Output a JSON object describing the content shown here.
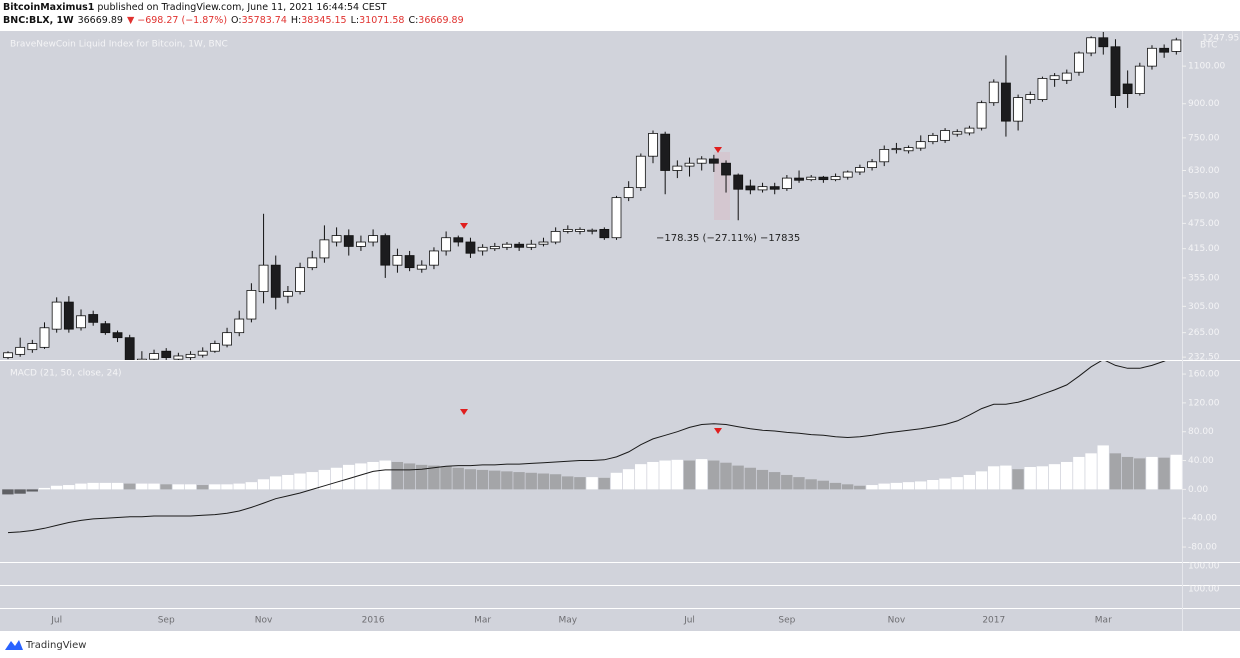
{
  "header": {
    "publisher": "BitcoinMaximus1",
    "published_line": "published on TradingView.com, June 11, 2021 16:44:54 CEST",
    "symbol": "BNC:BLX, 1W",
    "price": "36669.89",
    "change": "▼ −698.27 (−1.87%)",
    "ohlc": [
      {
        "label": "O:",
        "value": "35783.74"
      },
      {
        "label": "H:",
        "value": "38345.15"
      },
      {
        "label": "L:",
        "value": "31071.58"
      },
      {
        "label": "C:",
        "value": "36669.89"
      }
    ]
  },
  "chart_data": [
    {
      "type": "candlestick",
      "title": "BraveNewCoin Liquid Index for Bitcoin, 1W, BNC",
      "last_price_label": "1247.95",
      "unit": "BTC",
      "measure_label": "−178.35 (−27.11%) −17835",
      "categories": [
        null,
        null,
        null,
        null,
        "Jul",
        null,
        null,
        null,
        null,
        null,
        null,
        null,
        null,
        "Sep",
        null,
        null,
        null,
        null,
        null,
        null,
        null,
        "Nov",
        null,
        null,
        null,
        null,
        null,
        null,
        null,
        null,
        "2016",
        null,
        null,
        null,
        null,
        null,
        null,
        null,
        null,
        "Mar",
        null,
        null,
        null,
        null,
        null,
        null,
        "May",
        null,
        null,
        null,
        null,
        null,
        null,
        null,
        null,
        null,
        "Jul",
        null,
        null,
        null,
        null,
        null,
        null,
        null,
        "Sep",
        null,
        null,
        null,
        null,
        null,
        null,
        null,
        null,
        "Nov",
        null,
        null,
        null,
        null,
        null,
        null,
        null,
        "2017",
        null,
        null,
        null,
        null,
        null,
        null,
        null,
        null,
        "Mar",
        null,
        null,
        null,
        null,
        null,
        null
      ],
      "open": [
        232,
        236,
        242,
        245,
        270,
        312,
        272,
        292,
        278,
        265,
        258,
        225,
        230,
        240,
        230,
        232,
        235,
        240,
        248,
        265,
        285,
        330,
        380,
        322,
        330,
        375,
        395,
        430,
        445,
        420,
        430,
        445,
        380,
        400,
        372,
        380,
        410,
        440,
        430,
        410,
        415,
        418,
        425,
        418,
        425,
        430,
        455,
        455,
        456,
        460,
        440,
        545,
        575,
        680,
        765,
        630,
        645,
        655,
        670,
        655,
        615,
        580,
        568,
        578,
        572,
        605,
        600,
        608,
        600,
        608,
        625,
        640,
        660,
        705,
        700,
        710,
        735,
        740,
        765,
        770,
        790,
        905,
        1005,
        820,
        920,
        920,
        1025,
        1020,
        1065,
        1180,
        1280,
        1220,
        1000,
        950,
        1100,
        1210,
        1190
      ],
      "high": [
        240,
        258,
        255,
        280,
        320,
        322,
        300,
        298,
        282,
        268,
        262,
        240,
        242,
        244,
        238,
        240,
        245,
        254,
        272,
        298,
        345,
        500,
        400,
        340,
        385,
        410,
        470,
        465,
        460,
        445,
        460,
        450,
        415,
        410,
        390,
        418,
        455,
        445,
        440,
        425,
        428,
        430,
        430,
        435,
        440,
        465,
        470,
        465,
        462,
        465,
        550,
        595,
        690,
        780,
        775,
        665,
        675,
        680,
        685,
        665,
        620,
        600,
        590,
        590,
        615,
        630,
        615,
        612,
        620,
        630,
        650,
        670,
        720,
        730,
        720,
        760,
        770,
        790,
        785,
        800,
        915,
        1025,
        1165,
        945,
        960,
        1040,
        1060,
        1080,
        1190,
        1290,
        1320,
        1270,
        1075,
        1120,
        1230,
        1235,
        1280
      ],
      "low": [
        230,
        233,
        238,
        243,
        265,
        265,
        268,
        275,
        262,
        252,
        210,
        215,
        225,
        226,
        226,
        228,
        232,
        238,
        245,
        260,
        280,
        310,
        300,
        310,
        325,
        370,
        385,
        420,
        400,
        410,
        420,
        355,
        365,
        368,
        365,
        372,
        400,
        420,
        395,
        400,
        410,
        412,
        410,
        412,
        420,
        425,
        450,
        448,
        448,
        435,
        435,
        535,
        565,
        655,
        555,
        605,
        610,
        630,
        625,
        560,
        483,
        555,
        560,
        555,
        565,
        590,
        595,
        590,
        595,
        600,
        615,
        630,
        645,
        690,
        690,
        700,
        725,
        730,
        755,
        760,
        780,
        890,
        755,
        780,
        900,
        910,
        985,
        1000,
        1045,
        1160,
        1170,
        880,
        880,
        940,
        1080,
        1150,
        1170
      ],
      "close": [
        238,
        245,
        250,
        272,
        312,
        270,
        290,
        280,
        265,
        258,
        225,
        230,
        237,
        232,
        234,
        236,
        240,
        250,
        265,
        285,
        332,
        380,
        320,
        330,
        375,
        395,
        435,
        445,
        420,
        430,
        445,
        380,
        400,
        375,
        380,
        410,
        440,
        430,
        405,
        418,
        420,
        425,
        418,
        425,
        430,
        455,
        460,
        460,
        458,
        440,
        545,
        575,
        680,
        768,
        630,
        645,
        655,
        670,
        655,
        615,
        570,
        568,
        578,
        570,
        605,
        598,
        608,
        600,
        610,
        625,
        640,
        660,
        705,
        708,
        712,
        735,
        760,
        780,
        775,
        790,
        905,
        1010,
        820,
        930,
        945,
        1030,
        1045,
        1060,
        1180,
        1280,
        1220,
        940,
        950,
        1100,
        1210,
        1185,
        1265
      ],
      "up_color": "#ffffff",
      "down_color": "#1c1c1e",
      "border_color": "#111111",
      "log_scale": true,
      "ylim": [
        229,
        1320
      ],
      "yticks": [
        {
          "value": 232.5,
          "label": "232.50"
        },
        {
          "value": 265,
          "label": "265.00"
        },
        {
          "value": 305,
          "label": "305.00"
        },
        {
          "value": 355,
          "label": "355.00"
        },
        {
          "value": 415,
          "label": "415.00"
        },
        {
          "value": 475,
          "label": "475.00"
        },
        {
          "value": 550,
          "label": "550.00"
        },
        {
          "value": 630,
          "label": "630.00"
        },
        {
          "value": 750,
          "label": "750.00"
        },
        {
          "value": 900,
          "label": "900.00"
        },
        {
          "value": 1100,
          "label": "1100.00"
        }
      ],
      "grid": false
    },
    {
      "type": "macd",
      "title": "MACD (21, 50, close, 24)",
      "histogram": [
        -7,
        -6,
        -3,
        2,
        5,
        6,
        8,
        9,
        9,
        9,
        8,
        8,
        8,
        7,
        7,
        7,
        6,
        7,
        7,
        8,
        10,
        14,
        18,
        20,
        22,
        24,
        27,
        30,
        34,
        36,
        38,
        40,
        38,
        36,
        34,
        33,
        32,
        30,
        28,
        27,
        26,
        25,
        24,
        23,
        22,
        21,
        18,
        17,
        17,
        16,
        23,
        28,
        35,
        38,
        40,
        41,
        40,
        42,
        40,
        37,
        33,
        30,
        27,
        24,
        20,
        17,
        14,
        12,
        9,
        7,
        5,
        6,
        8,
        9,
        10,
        11,
        13,
        15,
        17,
        20,
        25,
        32,
        33,
        28,
        31,
        32,
        35,
        38,
        45,
        50,
        61,
        50,
        45,
        43,
        45,
        44,
        48
      ],
      "macd_line": [
        -60,
        -59,
        -57,
        -54,
        -50,
        -46,
        -43,
        -41,
        -40,
        -39,
        -38,
        -38,
        -37,
        -37,
        -37,
        -37,
        -36,
        -35,
        -33,
        -30,
        -25,
        -19,
        -13,
        -9,
        -5,
        0,
        5,
        10,
        15,
        20,
        25,
        27,
        27,
        27,
        28,
        30,
        32,
        33,
        33,
        34,
        34,
        35,
        35,
        36,
        37,
        38,
        39,
        40,
        40,
        41,
        45,
        52,
        62,
        70,
        75,
        80,
        86,
        90,
        91,
        90,
        87,
        84,
        82,
        81,
        79,
        78,
        76,
        75,
        73,
        72,
        73,
        75,
        78,
        80,
        82,
        84,
        87,
        90,
        95,
        103,
        112,
        118,
        118,
        121,
        126,
        132,
        138,
        145,
        157,
        170,
        180,
        172,
        168,
        168,
        172,
        178,
        185
      ],
      "rising_color": "#ffffff",
      "falling_color": "#a4a5a8",
      "negative_color": "#5f6064",
      "line_color": "#1a1a1a",
      "ylim": [
        -98,
        179.5
      ],
      "yticks": [
        {
          "value": -80,
          "label": "-80.00"
        },
        {
          "value": -40,
          "label": "-40.00"
        },
        {
          "value": 0,
          "label": "0.00"
        },
        {
          "value": 40,
          "label": "40.00"
        },
        {
          "value": 80,
          "label": "80.00"
        },
        {
          "value": 120,
          "label": "120.00"
        },
        {
          "value": 160,
          "label": "160.00"
        }
      ],
      "grid": false
    }
  ],
  "extra_pane_labels": [
    "100.00",
    "100.00"
  ],
  "footer": {
    "brand": "TradingView"
  }
}
